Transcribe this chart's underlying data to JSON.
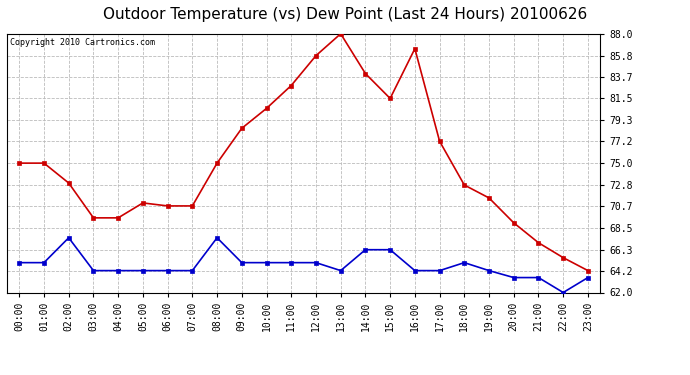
{
  "title": "Outdoor Temperature (vs) Dew Point (Last 24 Hours) 20100626",
  "copyright_text": "Copyright 2010 Cartronics.com",
  "x_labels": [
    "00:00",
    "01:00",
    "02:00",
    "03:00",
    "04:00",
    "05:00",
    "06:00",
    "07:00",
    "08:00",
    "09:00",
    "10:00",
    "11:00",
    "12:00",
    "13:00",
    "14:00",
    "15:00",
    "16:00",
    "17:00",
    "18:00",
    "19:00",
    "20:00",
    "21:00",
    "22:00",
    "23:00"
  ],
  "temp_data": [
    75.0,
    75.0,
    73.0,
    69.5,
    69.5,
    71.0,
    70.7,
    70.7,
    75.0,
    78.5,
    80.5,
    82.8,
    85.8,
    88.0,
    84.0,
    81.5,
    86.5,
    77.2,
    72.8,
    71.5,
    69.0,
    67.0,
    65.5,
    64.2
  ],
  "dew_data": [
    65.0,
    65.0,
    67.5,
    64.2,
    64.2,
    64.2,
    64.2,
    64.2,
    67.5,
    65.0,
    65.0,
    65.0,
    65.0,
    64.2,
    66.3,
    66.3,
    64.2,
    64.2,
    65.0,
    64.2,
    63.5,
    63.5,
    62.0,
    63.5
  ],
  "temp_color": "#cc0000",
  "dew_color": "#0000cc",
  "y_min": 62.0,
  "y_max": 88.0,
  "y_ticks": [
    62.0,
    64.2,
    66.3,
    68.5,
    70.7,
    72.8,
    75.0,
    77.2,
    79.3,
    81.5,
    83.7,
    85.8,
    88.0
  ],
  "background_color": "#ffffff",
  "grid_color": "#bbbbbb",
  "title_fontsize": 11,
  "tick_fontsize": 7,
  "copyright_fontsize": 6
}
